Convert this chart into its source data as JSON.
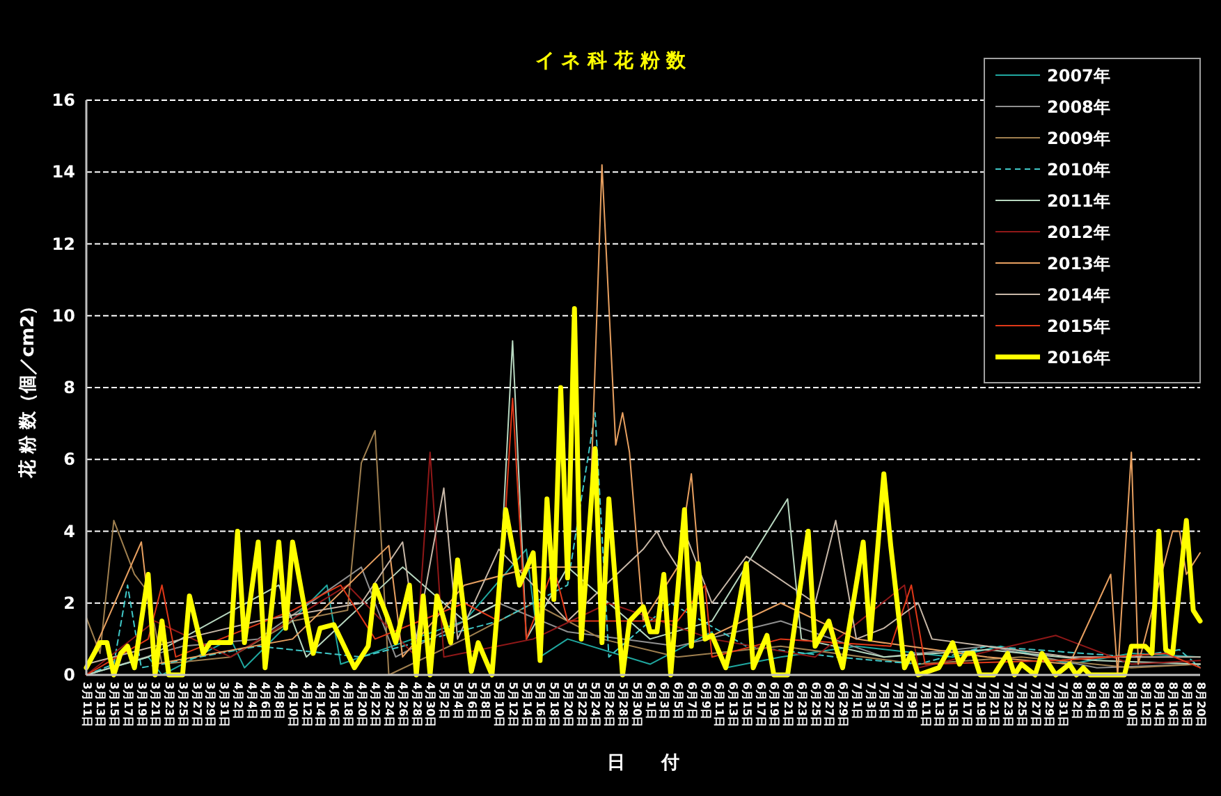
{
  "chart_data": {
    "type": "line",
    "title": "イ ネ 科 花 粉 数",
    "xlabel": "日　　付",
    "ylabel": "花 粉 数（個／cm2）",
    "xlim": [
      "--03-11",
      "--08-20"
    ],
    "ylim": [
      0,
      16
    ],
    "yticks": [
      0,
      2,
      4,
      6,
      8,
      10,
      12,
      14,
      16
    ],
    "xticks": [
      {
        "value": "--03-11",
        "label": "3月11日"
      },
      {
        "value": "--03-13",
        "label": "3月13日"
      },
      {
        "value": "--03-15",
        "label": "3月15日"
      },
      {
        "value": "--03-17",
        "label": "3月17日"
      },
      {
        "value": "--03-19",
        "label": "3月19日"
      },
      {
        "value": "--03-21",
        "label": "3月21日"
      },
      {
        "value": "--03-23",
        "label": "3月23日"
      },
      {
        "value": "--03-25",
        "label": "3月25日"
      },
      {
        "value": "--03-27",
        "label": "3月27日"
      },
      {
        "value": "--03-29",
        "label": "3月29日"
      },
      {
        "value": "--03-31",
        "label": "3月31日"
      },
      {
        "value": "--04-02",
        "label": "4月2日"
      },
      {
        "value": "--04-04",
        "label": "4月4日"
      },
      {
        "value": "--04-06",
        "label": "4月6日"
      },
      {
        "value": "--04-08",
        "label": "4月8日"
      },
      {
        "value": "--04-10",
        "label": "4月10日"
      },
      {
        "value": "--04-12",
        "label": "4月12日"
      },
      {
        "value": "--04-14",
        "label": "4月14日"
      },
      {
        "value": "--04-16",
        "label": "4月16日"
      },
      {
        "value": "--04-18",
        "label": "4月18日"
      },
      {
        "value": "--04-20",
        "label": "4月20日"
      },
      {
        "value": "--04-22",
        "label": "4月22日"
      },
      {
        "value": "--04-24",
        "label": "4月24日"
      },
      {
        "value": "--04-26",
        "label": "4月26日"
      },
      {
        "value": "--04-28",
        "label": "4月28日"
      },
      {
        "value": "--04-30",
        "label": "4月30日"
      },
      {
        "value": "--05-02",
        "label": "5月2日"
      },
      {
        "value": "--05-04",
        "label": "5月4日"
      },
      {
        "value": "--05-06",
        "label": "5月6日"
      },
      {
        "value": "--05-08",
        "label": "5月8日"
      },
      {
        "value": "--05-10",
        "label": "5月10日"
      },
      {
        "value": "--05-12",
        "label": "5月12日"
      },
      {
        "value": "--05-14",
        "label": "5月14日"
      },
      {
        "value": "--05-16",
        "label": "5月16日"
      },
      {
        "value": "--05-18",
        "label": "5月18日"
      },
      {
        "value": "--05-20",
        "label": "5月20日"
      },
      {
        "value": "--05-22",
        "label": "5月22日"
      },
      {
        "value": "--05-24",
        "label": "5月24日"
      },
      {
        "value": "--05-26",
        "label": "5月26日"
      },
      {
        "value": "--05-28",
        "label": "5月28日"
      },
      {
        "value": "--05-30",
        "label": "5月30日"
      },
      {
        "value": "--06-01",
        "label": "6月1日"
      },
      {
        "value": "--06-03",
        "label": "6月3日"
      },
      {
        "value": "--06-05",
        "label": "6月5日"
      },
      {
        "value": "--06-07",
        "label": "6月7日"
      },
      {
        "value": "--06-09",
        "label": "6月9日"
      },
      {
        "value": "--06-11",
        "label": "6月11日"
      },
      {
        "value": "--06-13",
        "label": "6月13日"
      },
      {
        "value": "--06-15",
        "label": "6月15日"
      },
      {
        "value": "--06-17",
        "label": "6月17日"
      },
      {
        "value": "--06-19",
        "label": "6月19日"
      },
      {
        "value": "--06-21",
        "label": "6月21日"
      },
      {
        "value": "--06-23",
        "label": "6月23日"
      },
      {
        "value": "--06-25",
        "label": "6月25日"
      },
      {
        "value": "--06-27",
        "label": "6月27日"
      },
      {
        "value": "--06-29",
        "label": "6月29日"
      },
      {
        "value": "--07-01",
        "label": "7月1日"
      },
      {
        "value": "--07-03",
        "label": "7月3日"
      },
      {
        "value": "--07-05",
        "label": "7月5日"
      },
      {
        "value": "--07-07",
        "label": "7月7日"
      },
      {
        "value": "--07-09",
        "label": "7月9日"
      },
      {
        "value": "--07-11",
        "label": "7月11日"
      },
      {
        "value": "--07-13",
        "label": "7月13日"
      },
      {
        "value": "--07-15",
        "label": "7月15日"
      },
      {
        "value": "--07-17",
        "label": "7月17日"
      },
      {
        "value": "--07-19",
        "label": "7月19日"
      },
      {
        "value": "--07-21",
        "label": "7月21日"
      },
      {
        "value": "--07-23",
        "label": "7月23日"
      },
      {
        "value": "--07-25",
        "label": "7月25日"
      },
      {
        "value": "--07-27",
        "label": "7月27日"
      },
      {
        "value": "--07-29",
        "label": "7月29日"
      },
      {
        "value": "--07-31",
        "label": "7月31日"
      },
      {
        "value": "--08-02",
        "label": "8月2日"
      },
      {
        "value": "--08-04",
        "label": "8月4日"
      },
      {
        "value": "--08-06",
        "label": "8月6日"
      },
      {
        "value": "--08-08",
        "label": "8月8日"
      },
      {
        "value": "--08-10",
        "label": "8月10日"
      },
      {
        "value": "--08-12",
        "label": "8月12日"
      },
      {
        "value": "--08-14",
        "label": "8月14日"
      },
      {
        "value": "--08-16",
        "label": "8月16日"
      },
      {
        "value": "--08-18",
        "label": "8月18日"
      },
      {
        "value": "--08-20",
        "label": "8月20日"
      }
    ],
    "grid": "y",
    "legend": "top right",
    "series": [
      {
        "name": "2007年",
        "color": "#20a8a0",
        "x": [
          "--03-11",
          "--03-20",
          "--03-22",
          "--04-01",
          "--04-03",
          "--04-15",
          "--04-17",
          "--05-05",
          "--05-14",
          "--05-16",
          "--05-20",
          "--06-01",
          "--06-10",
          "--06-12",
          "--06-20",
          "--07-01",
          "--07-15",
          "--07-22",
          "--08-01",
          "--08-10",
          "--08-20"
        ],
        "values": [
          0,
          0.5,
          0,
          1.0,
          0.2,
          2.5,
          0.3,
          1.5,
          3.5,
          0.5,
          1.0,
          0.3,
          1.2,
          0.2,
          0.5,
          0.8,
          0.5,
          0.8,
          0.3,
          0.6,
          0.5
        ]
      },
      {
        "name": "2008年",
        "color": "#909090",
        "x": [
          "--03-11",
          "--03-25",
          "--04-05",
          "--04-20",
          "--04-25",
          "--05-10",
          "--05-20",
          "--06-05",
          "--06-20",
          "--07-05",
          "--07-20",
          "--08-05",
          "--08-20"
        ],
        "values": [
          0,
          0.8,
          1.0,
          3.0,
          0.5,
          2.0,
          1.2,
          0.8,
          1.5,
          0.5,
          0.8,
          0.2,
          0.3
        ]
      },
      {
        "name": "2009年",
        "color": "#a08050",
        "x": [
          "--03-11",
          "--03-13",
          "--03-15",
          "--03-18",
          "--03-20",
          "--03-22",
          "--04-01",
          "--04-10",
          "--04-18",
          "--04-20",
          "--04-22",
          "--04-24",
          "--05-05",
          "--05-15",
          "--05-25",
          "--06-05",
          "--06-20",
          "--07-10",
          "--07-25",
          "--08-10",
          "--08-20"
        ],
        "values": [
          1.6,
          0.6,
          4.3,
          2.8,
          2.3,
          0.3,
          0.5,
          1.5,
          1.8,
          5.9,
          6.8,
          0,
          1.0,
          2.0,
          1.0,
          0.5,
          0.8,
          0.3,
          0.5,
          0.2,
          0.3
        ]
      },
      {
        "name": "2010年",
        "color": "#40c8c8",
        "line_style": "dashed",
        "x": [
          "--03-11",
          "--03-15",
          "--03-17",
          "--03-19",
          "--04-05",
          "--04-20",
          "--05-10",
          "--05-20",
          "--05-24",
          "--05-26",
          "--06-04",
          "--06-15",
          "--06-28",
          "--07-10",
          "--07-20",
          "--08-10",
          "--08-17",
          "--08-20"
        ],
        "values": [
          0,
          0.3,
          2.5,
          0.2,
          0.8,
          0.5,
          1.5,
          2.5,
          7.3,
          0.5,
          2.0,
          0.8,
          0.5,
          0.3,
          0.8,
          0.5,
          0.7,
          0.2
        ]
      },
      {
        "name": "2011年",
        "color": "#b8d8c0",
        "x": [
          "--03-11",
          "--03-20",
          "--04-08",
          "--04-12",
          "--04-26",
          "--05-05",
          "--05-10",
          "--05-12",
          "--05-14",
          "--05-20",
          "--06-01",
          "--06-10",
          "--06-21",
          "--06-23",
          "--07-05",
          "--07-20",
          "--08-05",
          "--08-20"
        ],
        "values": [
          0,
          0.5,
          2.5,
          0.5,
          3.0,
          1.5,
          2.0,
          9.3,
          1.0,
          3.0,
          1.0,
          1.5,
          4.9,
          1.0,
          0.5,
          0.7,
          0.4,
          0.3
        ]
      },
      {
        "name": "2012年",
        "color": "#901818",
        "x": [
          "--03-11",
          "--03-21",
          "--04-01",
          "--04-18",
          "--04-28",
          "--04-30",
          "--05-02",
          "--05-15",
          "--05-26",
          "--06-10",
          "--06-25",
          "--07-08",
          "--07-10",
          "--07-30",
          "--08-10",
          "--08-20"
        ],
        "values": [
          0,
          1.5,
          0.5,
          2.5,
          0.5,
          6.2,
          0.5,
          1.0,
          2.0,
          1.0,
          0.5,
          2.5,
          0.2,
          1.1,
          0.3,
          0.4
        ]
      },
      {
        "name": "2013年",
        "color": "#e8a060",
        "x": [
          "--03-11",
          "--03-19",
          "--03-21",
          "--04-10",
          "--04-24",
          "--04-26",
          "--05-05",
          "--05-15",
          "--05-23",
          "--05-25",
          "--05-27",
          "--05-28",
          "--05-29",
          "--05-31",
          "--06-05",
          "--06-07",
          "--06-09",
          "--06-20",
          "--07-01",
          "--07-20",
          "--08-01",
          "--08-07",
          "--08-08",
          "--08-10",
          "--08-11",
          "--08-16",
          "--08-17",
          "--08-18",
          "--08-20"
        ],
        "values": [
          0.2,
          3.7,
          0.3,
          1.0,
          3.6,
          0.5,
          2.5,
          3.0,
          3.0,
          14.2,
          6.4,
          7.3,
          6.2,
          1.5,
          3.0,
          5.6,
          1.0,
          2.0,
          1.0,
          0.5,
          0.3,
          2.8,
          0,
          6.2,
          0.3,
          4.0,
          4.0,
          2.8,
          3.4
        ]
      },
      {
        "name": "2014年",
        "color": "#c8b8a8",
        "x": [
          "--03-11",
          "--03-25",
          "--04-05",
          "--04-20",
          "--04-26",
          "--04-28",
          "--05-02",
          "--05-04",
          "--05-10",
          "--05-20",
          "--05-31",
          "--06-02",
          "--06-03",
          "--06-05",
          "--06-06",
          "--06-10",
          "--06-15",
          "--06-25",
          "--06-28",
          "--07-01",
          "--07-05",
          "--07-10",
          "--07-12",
          "--07-20",
          "--08-01",
          "--08-20"
        ],
        "values": [
          0.3,
          1.0,
          1.5,
          2.0,
          3.7,
          1.0,
          5.2,
          1.0,
          3.5,
          1.5,
          3.5,
          4.0,
          3.6,
          3.0,
          4.0,
          2.0,
          3.3,
          2.0,
          4.3,
          1.0,
          1.3,
          2.0,
          1.0,
          0.8,
          0.5,
          0.5
        ]
      },
      {
        "name": "2015年",
        "color": "#e03818",
        "x": [
          "--03-11",
          "--03-20",
          "--03-22",
          "--03-24",
          "--04-10",
          "--04-17",
          "--04-22",
          "--05-05",
          "--05-10",
          "--05-12",
          "--05-14",
          "--05-18",
          "--05-20",
          "--06-05",
          "--06-09",
          "--06-10",
          "--06-20",
          "--07-06",
          "--07-09",
          "--07-11",
          "--07-30",
          "--08-15",
          "--08-20"
        ],
        "values": [
          0,
          1.0,
          2.5,
          0.5,
          1.8,
          2.5,
          1.0,
          2.0,
          1.5,
          7.7,
          1.0,
          3.0,
          1.5,
          1.5,
          2.5,
          0.5,
          1.0,
          0.8,
          2.5,
          0.3,
          0.4,
          0.6,
          0.2
        ]
      },
      {
        "name": "2016年",
        "color": "#ffff00",
        "x": [
          "--03-11",
          "--03-13",
          "--03-14",
          "--03-15",
          "--03-16",
          "--03-17",
          "--03-18",
          "--03-20",
          "--03-21",
          "--03-22",
          "--03-23",
          "--03-25",
          "--03-26",
          "--03-28",
          "--03-29",
          "--04-01",
          "--04-02",
          "--04-03",
          "--04-05",
          "--04-06",
          "--04-08",
          "--04-09",
          "--04-10",
          "--04-12",
          "--04-13",
          "--04-14",
          "--04-16",
          "--04-18",
          "--04-19",
          "--04-21",
          "--04-22",
          "--04-24",
          "--04-25",
          "--04-27",
          "--04-28",
          "--04-29",
          "--04-30",
          "--05-01",
          "--05-03",
          "--05-04",
          "--05-06",
          "--05-07",
          "--05-09",
          "--05-11",
          "--05-13",
          "--05-15",
          "--05-16",
          "--05-17",
          "--05-18",
          "--05-19",
          "--05-20",
          "--05-21",
          "--05-22",
          "--05-24",
          "--05-25",
          "--05-26",
          "--05-28",
          "--05-29",
          "--05-31",
          "--06-01",
          "--06-02",
          "--06-03",
          "--06-04",
          "--06-06",
          "--06-07",
          "--06-08",
          "--06-09",
          "--06-10",
          "--06-12",
          "--06-13",
          "--06-15",
          "--06-16",
          "--06-18",
          "--06-19",
          "--06-21",
          "--06-24",
          "--06-25",
          "--06-27",
          "--06-28",
          "--06-29",
          "--07-02",
          "--07-03",
          "--07-05",
          "--07-06",
          "--07-08",
          "--07-09",
          "--07-10",
          "--07-13",
          "--07-15",
          "--07-16",
          "--07-17",
          "--07-18",
          "--07-19",
          "--07-21",
          "--07-23",
          "--07-24",
          "--07-25",
          "--07-27",
          "--07-28",
          "--07-30",
          "--08-01",
          "--08-02",
          "--08-03",
          "--08-04",
          "--08-09",
          "--08-10",
          "--08-12",
          "--08-13",
          "--08-14",
          "--08-15",
          "--08-16",
          "--08-18",
          "--08-19",
          "--08-20"
        ],
        "values": [
          0.2,
          0.9,
          0.9,
          0,
          0.6,
          0.8,
          0.2,
          2.8,
          0,
          1.5,
          0,
          0,
          2.2,
          0.6,
          0.9,
          0.9,
          4.0,
          0.9,
          3.7,
          0.2,
          3.7,
          1.3,
          3.7,
          1.6,
          0.6,
          1.3,
          1.4,
          0.6,
          0.2,
          0.8,
          2.5,
          1.5,
          0.9,
          2.5,
          0,
          2.2,
          0,
          2.2,
          0.9,
          3.2,
          0.1,
          0.9,
          0,
          4.6,
          2.5,
          3.4,
          0.4,
          4.9,
          2.1,
          8.0,
          2.7,
          10.2,
          1.0,
          6.3,
          0.9,
          4.9,
          0,
          1.5,
          1.9,
          1.2,
          1.2,
          2.8,
          0,
          4.6,
          0.8,
          3.1,
          1.0,
          1.1,
          0.2,
          1.0,
          3.1,
          0.2,
          1.1,
          0,
          0,
          4.0,
          0.8,
          1.5,
          0.8,
          0.2,
          3.7,
          1.0,
          5.6,
          3.6,
          0.2,
          0.6,
          0,
          0.2,
          0.9,
          0.3,
          0.6,
          0.6,
          0,
          0,
          0.6,
          0,
          0.3,
          0,
          0.6,
          0,
          0.3,
          0,
          0.2,
          0,
          0,
          0.8,
          0.8,
          0.6,
          4.0,
          0.7,
          0.6,
          4.3,
          1.8,
          1.5
        ]
      }
    ]
  }
}
